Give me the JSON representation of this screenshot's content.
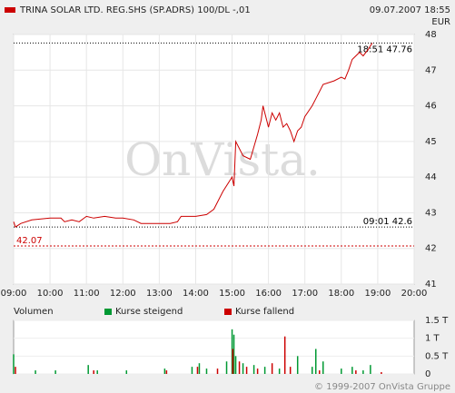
{
  "chart_data": [
    {
      "type": "line",
      "subtitle": "09.07.2007 18:55",
      "y_label": "EUR",
      "watermark": "OnVista.",
      "x": [
        9.0,
        9.05,
        9.2,
        9.5,
        10.0,
        10.3,
        10.4,
        10.6,
        10.8,
        11.0,
        11.2,
        11.5,
        11.8,
        12.0,
        12.3,
        12.5,
        13.0,
        13.3,
        13.5,
        13.6,
        14.0,
        14.3,
        14.5,
        14.75,
        15.0,
        15.05,
        15.1,
        15.3,
        15.5,
        15.7,
        15.8,
        15.85,
        16.0,
        16.1,
        16.2,
        16.3,
        16.4,
        16.5,
        16.6,
        16.7,
        16.8,
        16.9,
        17.0,
        17.2,
        17.3,
        17.5,
        17.8,
        18.0,
        18.1,
        18.2,
        18.3,
        18.5,
        18.6,
        18.75,
        18.85
      ],
      "series": [
        {
          "name": "TRINA SOLAR LTD. REG.SHS (SP.ADRS) 100/DL -,01",
          "color": "#cc0000",
          "values": [
            42.75,
            42.6,
            42.7,
            42.8,
            42.85,
            42.85,
            42.75,
            42.8,
            42.75,
            42.9,
            42.85,
            42.9,
            42.85,
            42.85,
            42.8,
            42.7,
            42.7,
            42.7,
            42.75,
            42.9,
            42.9,
            42.95,
            43.1,
            43.6,
            44.0,
            43.75,
            45.0,
            44.6,
            44.5,
            45.2,
            45.6,
            46.0,
            45.4,
            45.8,
            45.6,
            45.8,
            45.4,
            45.5,
            45.3,
            45.0,
            45.3,
            45.4,
            45.7,
            46.0,
            46.2,
            46.6,
            46.7,
            46.8,
            46.75,
            47.0,
            47.3,
            47.5,
            47.4,
            47.6,
            47.76
          ]
        }
      ],
      "xlim": [
        9,
        20
      ],
      "xticks": [
        {
          "value": 9,
          "label": "09:00"
        },
        {
          "value": 10,
          "label": "10:00"
        },
        {
          "value": 11,
          "label": "11:00"
        },
        {
          "value": 12,
          "label": "12:00"
        },
        {
          "value": 13,
          "label": "13:00"
        },
        {
          "value": 14,
          "label": "14:00"
        },
        {
          "value": 15,
          "label": "15:00"
        },
        {
          "value": 16,
          "label": "16:00"
        },
        {
          "value": 17,
          "label": "17:00"
        },
        {
          "value": 18,
          "label": "18:00"
        },
        {
          "value": 19,
          "label": "19:00"
        },
        {
          "value": 20,
          "label": "20:00"
        }
      ],
      "ylim": [
        41,
        48
      ],
      "yticks": [
        41,
        42,
        43,
        44,
        45,
        46,
        47,
        48
      ],
      "grid": true,
      "annotations": [
        {
          "y": 47.76,
          "label": "18:51 47.76",
          "color": "#000000",
          "align": "right"
        },
        {
          "y": 42.6,
          "label": "09:01 42.6",
          "color": "#000000",
          "align": "right"
        },
        {
          "y": 42.07,
          "label": "42.07",
          "color": "#cc0000",
          "align": "left"
        }
      ]
    },
    {
      "type": "bar",
      "title": "Volumen",
      "series": [
        {
          "name": "Kurse steigend",
          "color": "#009933",
          "x": [
            9.0,
            9.6,
            10.15,
            11.05,
            11.3,
            12.1,
            13.15,
            13.9,
            14.1,
            14.3,
            14.85,
            15.0,
            15.05,
            15.1,
            15.3,
            15.6,
            15.9,
            16.3,
            16.8,
            17.2,
            17.3,
            17.5,
            18.0,
            18.3,
            18.6,
            18.8
          ],
          "values": [
            0.55,
            0.1,
            0.1,
            0.25,
            0.1,
            0.1,
            0.15,
            0.2,
            0.3,
            0.15,
            0.35,
            1.25,
            1.1,
            0.5,
            0.3,
            0.25,
            0.2,
            0.15,
            0.5,
            0.2,
            0.7,
            0.35,
            0.15,
            0.2,
            0.1,
            0.25
          ]
        },
        {
          "name": "Kurse fallend",
          "color": "#cc0000",
          "x": [
            9.05,
            11.2,
            13.2,
            14.05,
            14.6,
            15.02,
            15.2,
            15.4,
            15.7,
            16.1,
            16.45,
            16.6,
            17.4,
            18.4,
            19.1
          ],
          "values": [
            0.2,
            0.1,
            0.1,
            0.2,
            0.15,
            0.7,
            0.35,
            0.2,
            0.15,
            0.3,
            1.05,
            0.2,
            0.1,
            0.1,
            0.05
          ]
        }
      ],
      "xlim": [
        9,
        20
      ],
      "ylim": [
        0,
        1.5
      ],
      "yticks": [
        0,
        {
          "value": 0.5,
          "label": "0.5 T"
        },
        {
          "value": 1,
          "label": "1 T"
        },
        {
          "value": 1.5,
          "label": "1.5 T"
        }
      ],
      "grid": true,
      "source": "© 1999-2007 OnVista Gruppe"
    }
  ]
}
